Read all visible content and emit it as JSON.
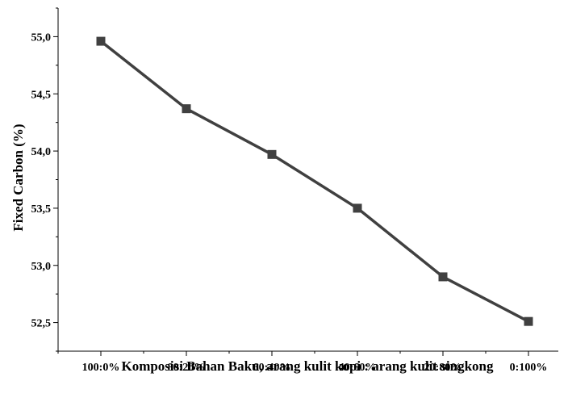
{
  "chart_data": {
    "type": "line",
    "title": "",
    "xlabel": "Komposisi Bahan Baku, arang kulit kopi : arang kulit singkong",
    "ylabel": "Fixed Carbon (%)",
    "categories": [
      "100:0%",
      "80:20%",
      "60:40%",
      "40:60%",
      "20:80%",
      "0:100%"
    ],
    "series": [
      {
        "values": [
          54.96,
          54.37,
          53.97,
          53.5,
          52.9,
          52.51
        ]
      }
    ],
    "ylim": [
      52.25,
      55.25
    ],
    "yticks": [
      52.5,
      53.0,
      53.5,
      54.0,
      54.5,
      55.0
    ],
    "ytick_labels": [
      "52,5",
      "53,0",
      "53,5",
      "54,0",
      "54,5",
      "55,0"
    ],
    "grid": false,
    "line_color": "#404040",
    "marker": "square"
  }
}
